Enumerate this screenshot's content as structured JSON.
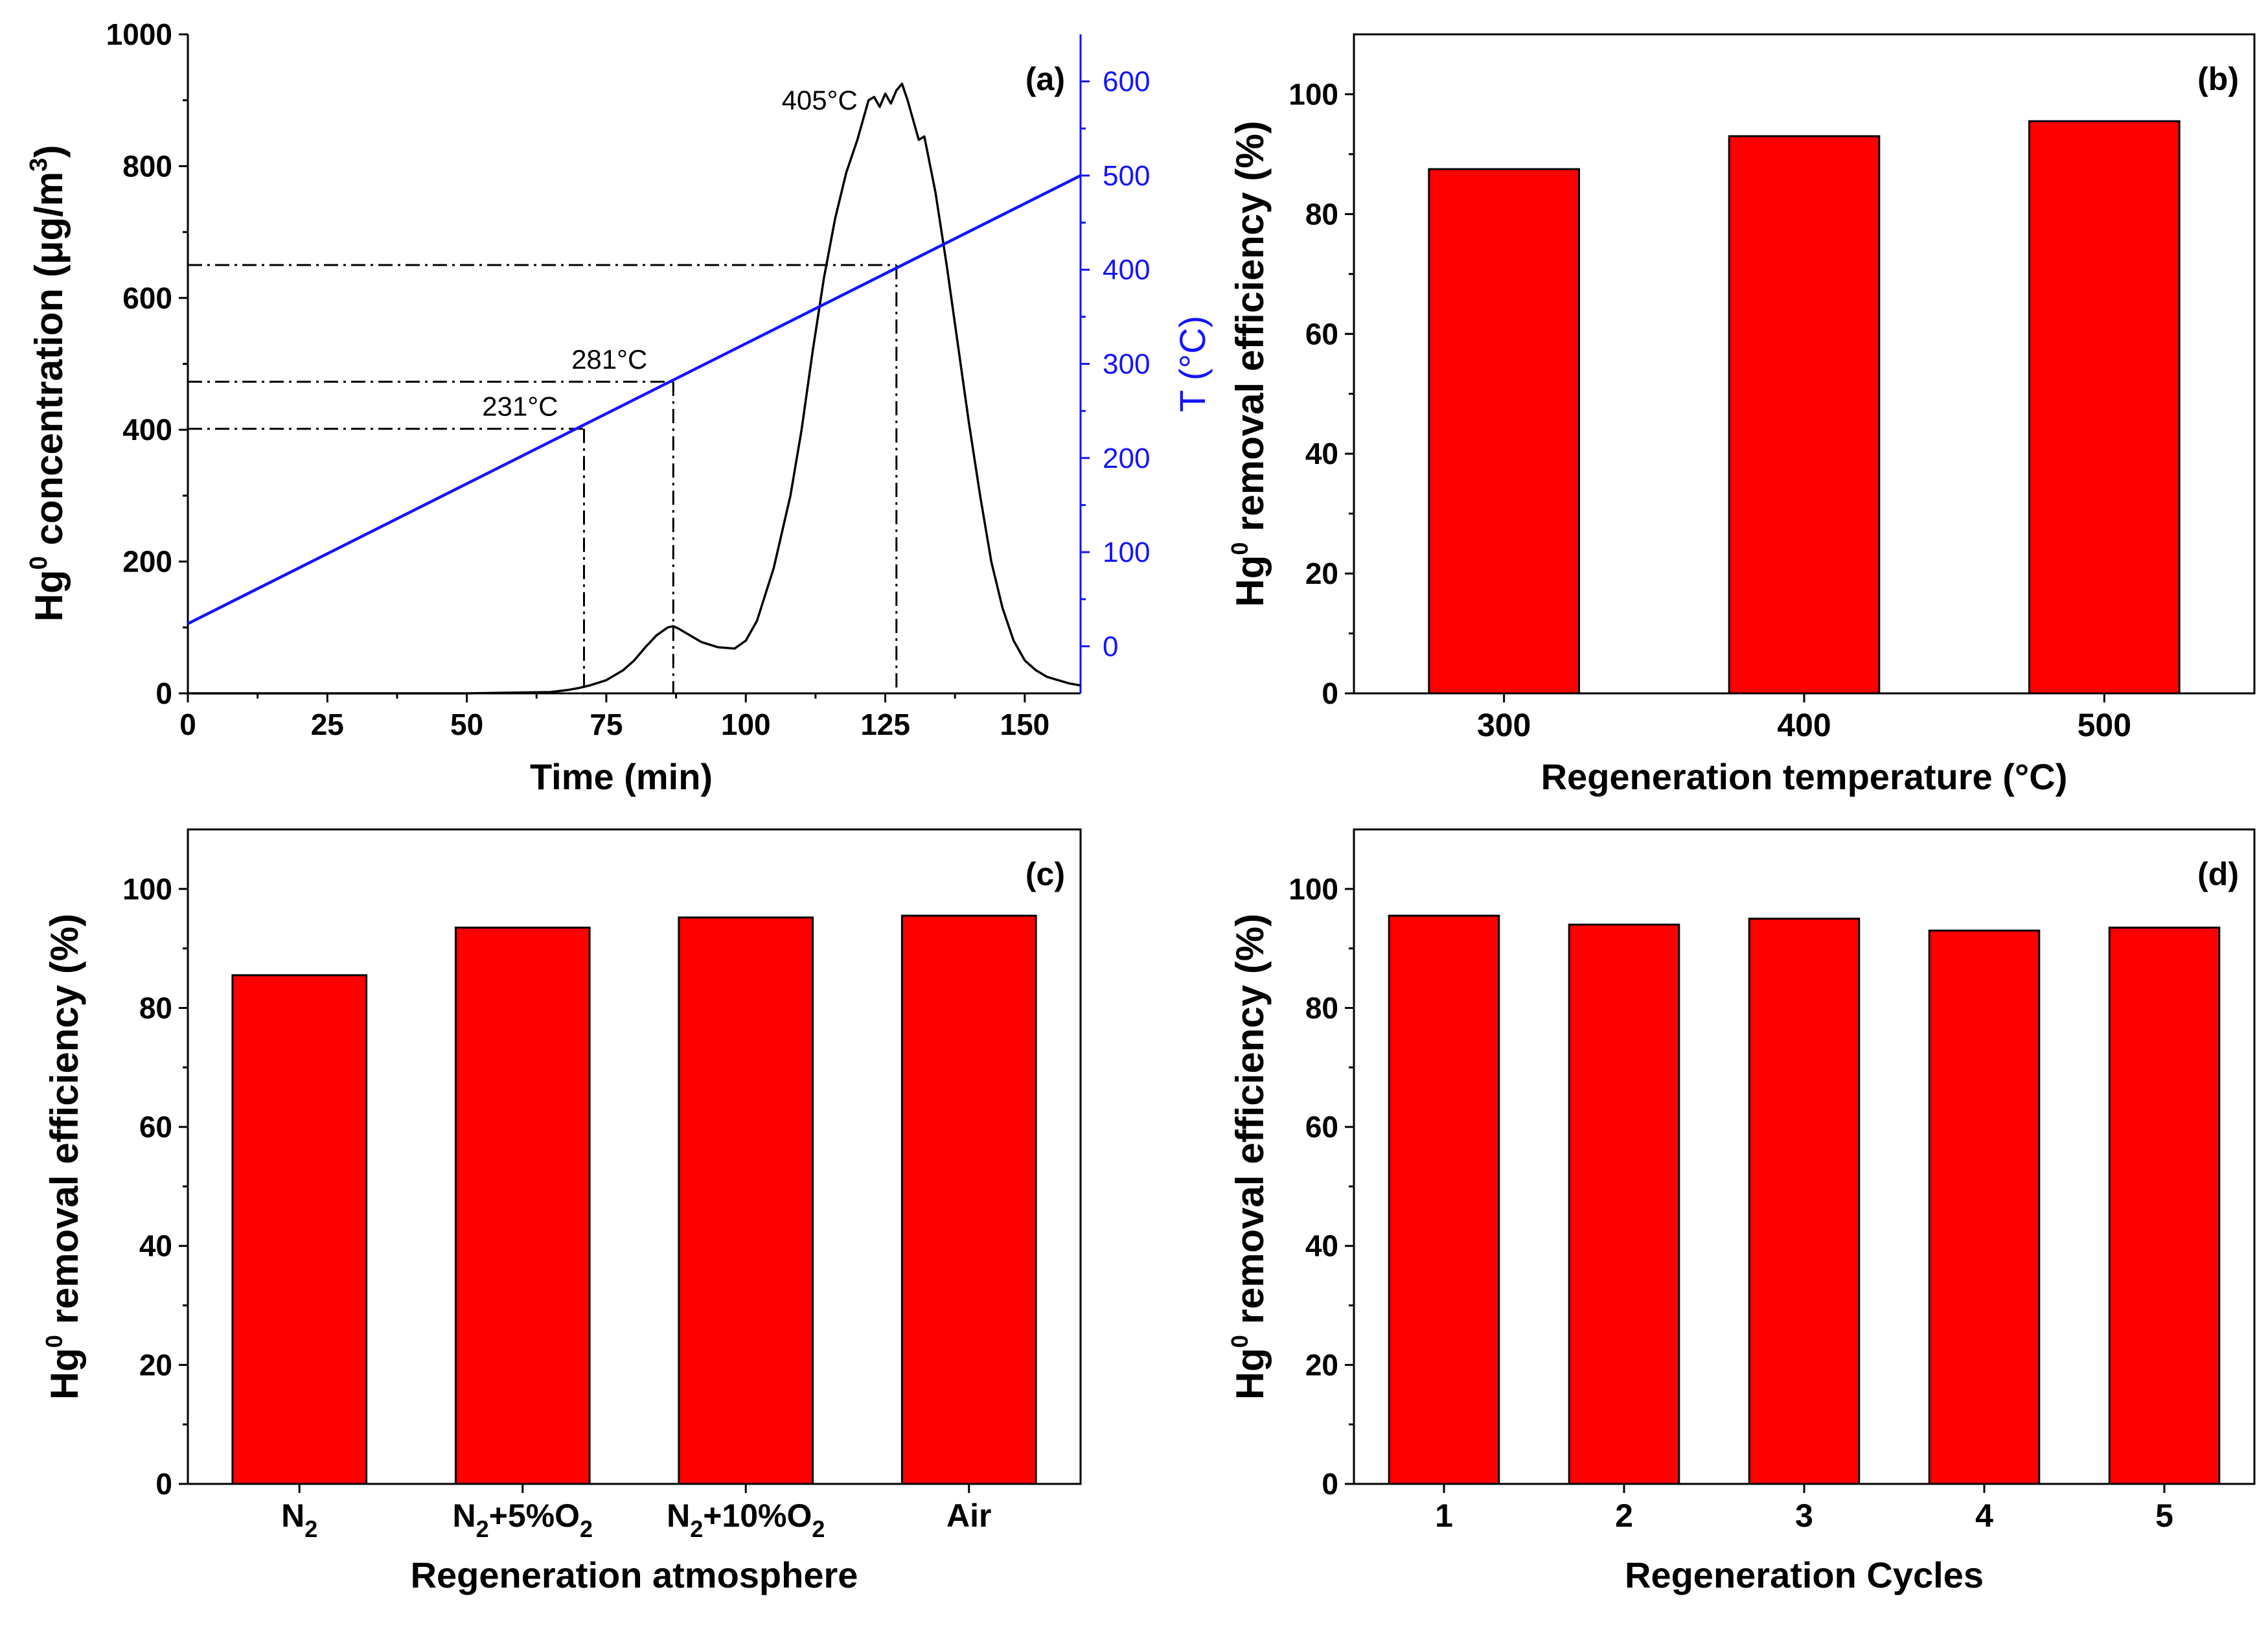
{
  "colors": {
    "bar": "#ff0000",
    "bar_edge": "#000000",
    "temp_line": "#1414ff",
    "axis": "#000000"
  },
  "chart_data": [
    {
      "id": "a",
      "type": "line",
      "panel_label": "(a)",
      "xlabel": "Time (min)",
      "ylabel_left": {
        "main": "Hg",
        "sup": "0",
        "rest": " concentration (μg/m",
        "sup2": "3",
        "end": ")"
      },
      "ylabel_right": "T (°C)",
      "xlim": [
        0,
        160
      ],
      "ylim_left": [
        0,
        1000
      ],
      "ylim_right": [
        -50,
        650
      ],
      "xticks": [
        "0",
        "25",
        "50",
        "75",
        "100",
        "125",
        "150"
      ],
      "xtick_values": [
        0,
        25,
        50,
        75,
        100,
        125,
        150
      ],
      "yticks_left": [
        "0",
        "200",
        "400",
        "600",
        "800",
        "1000"
      ],
      "ytick_values_left": [
        0,
        200,
        400,
        600,
        800,
        1000
      ],
      "yticks_right": [
        "0",
        "100",
        "200",
        "300",
        "400",
        "500",
        "600"
      ],
      "ytick_values_right": [
        0,
        100,
        200,
        300,
        400,
        500,
        600
      ],
      "series": [
        {
          "name": "Hg0 concentration",
          "axis": "left",
          "x": [
            0,
            50,
            65,
            68,
            70,
            72,
            75,
            78,
            80,
            82,
            84,
            86,
            87,
            88,
            90,
            92,
            95,
            98,
            100,
            102,
            105,
            108,
            110,
            112,
            114,
            116,
            118,
            120,
            121,
            122,
            123,
            124,
            125,
            126,
            127,
            128,
            129,
            130,
            131,
            132,
            134,
            136,
            138,
            140,
            142,
            144,
            146,
            148,
            150,
            152,
            154,
            156,
            158,
            160
          ],
          "y": [
            0,
            0,
            2,
            5,
            8,
            12,
            20,
            35,
            50,
            70,
            88,
            100,
            102,
            98,
            88,
            78,
            70,
            68,
            80,
            110,
            190,
            300,
            400,
            520,
            630,
            720,
            790,
            840,
            870,
            900,
            905,
            890,
            910,
            895,
            915,
            925,
            900,
            870,
            840,
            845,
            760,
            650,
            530,
            410,
            300,
            200,
            130,
            80,
            50,
            35,
            25,
            20,
            15,
            12
          ]
        },
        {
          "name": "T",
          "axis": "right",
          "x": [
            0,
            160
          ],
          "y": [
            24,
            500
          ]
        }
      ],
      "annotations": [
        {
          "text": "231°C",
          "time": 71,
          "temp": 231
        },
        {
          "text": "281°C",
          "time": 87,
          "temp": 281
        },
        {
          "text": "405°C",
          "time": 127,
          "temp": 405
        }
      ]
    },
    {
      "id": "b",
      "type": "bar",
      "panel_label": "(b)",
      "xlabel": "Regeneration temperature (°C)",
      "ylabel": {
        "main": "Hg",
        "sup": "0",
        "rest": " removal efficiency (%)"
      },
      "categories": [
        "300",
        "400",
        "500"
      ],
      "values": [
        87.5,
        93,
        95.5
      ],
      "ylim": [
        0,
        110
      ],
      "yticks": [
        "0",
        "20",
        "40",
        "60",
        "80",
        "100"
      ],
      "ytick_values": [
        0,
        20,
        40,
        60,
        80,
        100
      ]
    },
    {
      "id": "c",
      "type": "bar",
      "panel_label": "(c)",
      "xlabel": "Regeneration atmosphere",
      "ylabel": {
        "main": "Hg",
        "sup": "0",
        "rest": " removal efficiency (%)"
      },
      "categories": [
        {
          "base": "N",
          "sub": "2",
          "mid": "",
          "sub2": ""
        },
        {
          "base": "N",
          "sub": "2",
          "mid": "+5%O",
          "sub2": "2"
        },
        {
          "base": "N",
          "sub": "2",
          "mid": "+10%O",
          "sub2": "2"
        },
        {
          "base": "Air",
          "sub": "",
          "mid": "",
          "sub2": ""
        }
      ],
      "values": [
        85.5,
        93.5,
        95.2,
        95.5
      ],
      "ylim": [
        0,
        110
      ],
      "yticks": [
        "0",
        "20",
        "40",
        "60",
        "80",
        "100"
      ],
      "ytick_values": [
        0,
        20,
        40,
        60,
        80,
        100
      ]
    },
    {
      "id": "d",
      "type": "bar",
      "panel_label": "(d)",
      "xlabel": "Regeneration Cycles",
      "ylabel": {
        "main": "Hg",
        "sup": "0",
        "rest": " removal efficiency (%)"
      },
      "categories": [
        "1",
        "2",
        "3",
        "4",
        "5"
      ],
      "values": [
        95.5,
        94,
        95,
        93,
        93.5
      ],
      "ylim": [
        0,
        110
      ],
      "yticks": [
        "0",
        "20",
        "40",
        "60",
        "80",
        "100"
      ],
      "ytick_values": [
        0,
        20,
        40,
        60,
        80,
        100
      ]
    }
  ]
}
